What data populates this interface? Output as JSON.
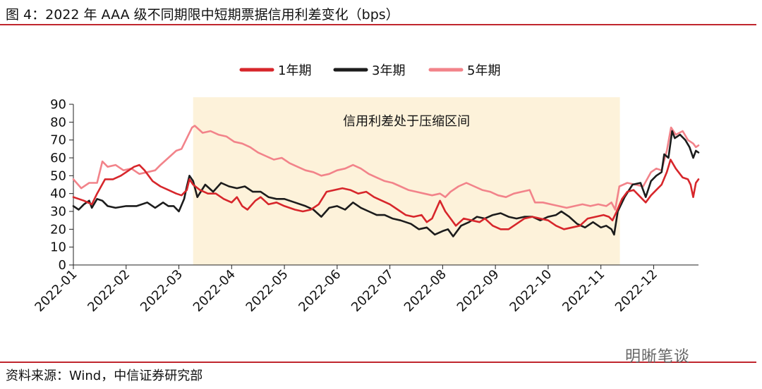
{
  "header": {
    "title": "图 4：2022 年 AAA 级不同期限中短期票据信用利差变化（bps）"
  },
  "footer": {
    "source": "资料来源：Wind，中信证券研究部",
    "watermark": "明晰笔谈"
  },
  "colors": {
    "rule": "#c0262d",
    "band": "#fdf2da"
  },
  "chart_data": {
    "type": "line",
    "ylim": [
      0,
      90
    ],
    "yticks": [
      0,
      10,
      20,
      30,
      40,
      50,
      60,
      70,
      80,
      90
    ],
    "xlim": [
      0,
      11.85
    ],
    "xticks": [
      {
        "pos": 0,
        "label": "2022-01"
      },
      {
        "pos": 1,
        "label": "2022-02"
      },
      {
        "pos": 2,
        "label": "2022-03"
      },
      {
        "pos": 3,
        "label": "2022-04"
      },
      {
        "pos": 4,
        "label": "2022-05"
      },
      {
        "pos": 5,
        "label": "2022-06"
      },
      {
        "pos": 6,
        "label": "2022-07"
      },
      {
        "pos": 7,
        "label": "2022-08"
      },
      {
        "pos": 8,
        "label": "2022-09"
      },
      {
        "pos": 9,
        "label": "2022-10"
      },
      {
        "pos": 10,
        "label": "2022-11"
      },
      {
        "pos": 11,
        "label": "2022-12"
      }
    ],
    "band": {
      "from": 2.27,
      "to": 10.36,
      "label": "信用利差处于压缩区间"
    },
    "legend_position": "top-center",
    "series": [
      {
        "name": "1年期",
        "color": "#d7262b",
        "points": [
          [
            0,
            38
          ],
          [
            0.2,
            36
          ],
          [
            0.35,
            34
          ],
          [
            0.45,
            40
          ],
          [
            0.6,
            48
          ],
          [
            0.75,
            48
          ],
          [
            0.9,
            50
          ],
          [
            1.0,
            52
          ],
          [
            1.15,
            55
          ],
          [
            1.25,
            56
          ],
          [
            1.35,
            53
          ],
          [
            1.5,
            47
          ],
          [
            1.65,
            44
          ],
          [
            1.8,
            42
          ],
          [
            1.95,
            40
          ],
          [
            2.05,
            39
          ],
          [
            2.15,
            42
          ],
          [
            2.2,
            48
          ],
          [
            2.27,
            45
          ],
          [
            2.4,
            42
          ],
          [
            2.55,
            40
          ],
          [
            2.7,
            40
          ],
          [
            2.85,
            37
          ],
          [
            3.0,
            35
          ],
          [
            3.1,
            38
          ],
          [
            3.2,
            33
          ],
          [
            3.3,
            31
          ],
          [
            3.45,
            36
          ],
          [
            3.55,
            38
          ],
          [
            3.7,
            34
          ],
          [
            3.85,
            35
          ],
          [
            4.0,
            33
          ],
          [
            4.2,
            31
          ],
          [
            4.35,
            30
          ],
          [
            4.5,
            31
          ],
          [
            4.65,
            34
          ],
          [
            4.8,
            41
          ],
          [
            4.95,
            42
          ],
          [
            5.1,
            43
          ],
          [
            5.25,
            42
          ],
          [
            5.4,
            40
          ],
          [
            5.55,
            41
          ],
          [
            5.7,
            38
          ],
          [
            5.85,
            36
          ],
          [
            6.0,
            34
          ],
          [
            6.15,
            31
          ],
          [
            6.3,
            28
          ],
          [
            6.45,
            27
          ],
          [
            6.6,
            28
          ],
          [
            6.7,
            24
          ],
          [
            6.8,
            26
          ],
          [
            6.95,
            36
          ],
          [
            7.05,
            30
          ],
          [
            7.15,
            26
          ],
          [
            7.25,
            22
          ],
          [
            7.4,
            26
          ],
          [
            7.55,
            25
          ],
          [
            7.7,
            24
          ],
          [
            7.8,
            26
          ],
          [
            7.95,
            22
          ],
          [
            8.1,
            20
          ],
          [
            8.25,
            20
          ],
          [
            8.4,
            23
          ],
          [
            8.55,
            26
          ],
          [
            8.7,
            27
          ],
          [
            8.85,
            26
          ],
          [
            9.0,
            25
          ],
          [
            9.15,
            22
          ],
          [
            9.3,
            20
          ],
          [
            9.45,
            21
          ],
          [
            9.6,
            22
          ],
          [
            9.75,
            26
          ],
          [
            9.9,
            27
          ],
          [
            10.05,
            28
          ],
          [
            10.15,
            27
          ],
          [
            10.22,
            25
          ],
          [
            10.3,
            30
          ],
          [
            10.4,
            37
          ],
          [
            10.5,
            41
          ],
          [
            10.62,
            42
          ],
          [
            10.75,
            38
          ],
          [
            10.85,
            35
          ],
          [
            10.95,
            39
          ],
          [
            11.05,
            42
          ],
          [
            11.15,
            45
          ],
          [
            11.25,
            52
          ],
          [
            11.32,
            59
          ],
          [
            11.42,
            54
          ],
          [
            11.55,
            49
          ],
          [
            11.65,
            48
          ],
          [
            11.7,
            45
          ],
          [
            11.75,
            38
          ],
          [
            11.8,
            46
          ],
          [
            11.85,
            48
          ]
        ]
      },
      {
        "name": "3年期",
        "color": "#1c1c1c",
        "points": [
          [
            0,
            33
          ],
          [
            0.1,
            31
          ],
          [
            0.2,
            34
          ],
          [
            0.3,
            36
          ],
          [
            0.35,
            32
          ],
          [
            0.45,
            37
          ],
          [
            0.55,
            36
          ],
          [
            0.65,
            33
          ],
          [
            0.8,
            32
          ],
          [
            1.0,
            33
          ],
          [
            1.2,
            33
          ],
          [
            1.4,
            35
          ],
          [
            1.55,
            32
          ],
          [
            1.7,
            35
          ],
          [
            1.8,
            33
          ],
          [
            1.9,
            33
          ],
          [
            2.0,
            30
          ],
          [
            2.1,
            37
          ],
          [
            2.15,
            44
          ],
          [
            2.2,
            50
          ],
          [
            2.27,
            47
          ],
          [
            2.35,
            38
          ],
          [
            2.5,
            45
          ],
          [
            2.65,
            41
          ],
          [
            2.8,
            46
          ],
          [
            2.95,
            44
          ],
          [
            3.1,
            43
          ],
          [
            3.25,
            44
          ],
          [
            3.4,
            41
          ],
          [
            3.55,
            41
          ],
          [
            3.7,
            38
          ],
          [
            3.85,
            37
          ],
          [
            4.0,
            37
          ],
          [
            4.2,
            35
          ],
          [
            4.4,
            33
          ],
          [
            4.55,
            31
          ],
          [
            4.7,
            27
          ],
          [
            4.85,
            32
          ],
          [
            5.0,
            33
          ],
          [
            5.15,
            31
          ],
          [
            5.3,
            35
          ],
          [
            5.45,
            32
          ],
          [
            5.6,
            30
          ],
          [
            5.75,
            28
          ],
          [
            5.9,
            28
          ],
          [
            6.05,
            26
          ],
          [
            6.2,
            25
          ],
          [
            6.4,
            23
          ],
          [
            6.55,
            20
          ],
          [
            6.7,
            21
          ],
          [
            6.85,
            17
          ],
          [
            7.0,
            19
          ],
          [
            7.1,
            20
          ],
          [
            7.2,
            16
          ],
          [
            7.35,
            22
          ],
          [
            7.5,
            24
          ],
          [
            7.65,
            27
          ],
          [
            7.8,
            26
          ],
          [
            7.95,
            28
          ],
          [
            8.1,
            29
          ],
          [
            8.25,
            27
          ],
          [
            8.4,
            26
          ],
          [
            8.55,
            27
          ],
          [
            8.7,
            27
          ],
          [
            8.85,
            25
          ],
          [
            9.0,
            27
          ],
          [
            9.15,
            28
          ],
          [
            9.25,
            30
          ],
          [
            9.4,
            27
          ],
          [
            9.55,
            23
          ],
          [
            9.7,
            21
          ],
          [
            9.85,
            24
          ],
          [
            10.0,
            21
          ],
          [
            10.1,
            22
          ],
          [
            10.2,
            20
          ],
          [
            10.25,
            17
          ],
          [
            10.32,
            30
          ],
          [
            10.45,
            38
          ],
          [
            10.6,
            45
          ],
          [
            10.75,
            46
          ],
          [
            10.85,
            38
          ],
          [
            10.95,
            47
          ],
          [
            11.05,
            50
          ],
          [
            11.15,
            52
          ],
          [
            11.2,
            62
          ],
          [
            11.28,
            60
          ],
          [
            11.35,
            75
          ],
          [
            11.4,
            71
          ],
          [
            11.5,
            73
          ],
          [
            11.6,
            70
          ],
          [
            11.68,
            66
          ],
          [
            11.75,
            60
          ],
          [
            11.8,
            64
          ],
          [
            11.85,
            63
          ]
        ]
      },
      {
        "name": "5年期",
        "color": "#f2838a",
        "points": [
          [
            0,
            48
          ],
          [
            0.15,
            43
          ],
          [
            0.3,
            46
          ],
          [
            0.45,
            46
          ],
          [
            0.55,
            58
          ],
          [
            0.65,
            55
          ],
          [
            0.8,
            56
          ],
          [
            0.95,
            53
          ],
          [
            1.1,
            54
          ],
          [
            1.25,
            51
          ],
          [
            1.4,
            52
          ],
          [
            1.55,
            53
          ],
          [
            1.65,
            56
          ],
          [
            1.8,
            60
          ],
          [
            1.95,
            64
          ],
          [
            2.05,
            65
          ],
          [
            2.15,
            71
          ],
          [
            2.25,
            77
          ],
          [
            2.3,
            78
          ],
          [
            2.45,
            74
          ],
          [
            2.6,
            75
          ],
          [
            2.75,
            73
          ],
          [
            2.9,
            72
          ],
          [
            3.05,
            69
          ],
          [
            3.2,
            68
          ],
          [
            3.35,
            66
          ],
          [
            3.5,
            63
          ],
          [
            3.65,
            61
          ],
          [
            3.8,
            59
          ],
          [
            3.95,
            60
          ],
          [
            4.1,
            57
          ],
          [
            4.25,
            55
          ],
          [
            4.4,
            53
          ],
          [
            4.55,
            52
          ],
          [
            4.7,
            50
          ],
          [
            4.85,
            51
          ],
          [
            5.0,
            53
          ],
          [
            5.15,
            54
          ],
          [
            5.3,
            56
          ],
          [
            5.45,
            54
          ],
          [
            5.6,
            51
          ],
          [
            5.75,
            49
          ],
          [
            5.9,
            47
          ],
          [
            6.05,
            46
          ],
          [
            6.2,
            44
          ],
          [
            6.35,
            42
          ],
          [
            6.5,
            41
          ],
          [
            6.65,
            40
          ],
          [
            6.8,
            39
          ],
          [
            6.95,
            40
          ],
          [
            7.05,
            38
          ],
          [
            7.15,
            41
          ],
          [
            7.3,
            44
          ],
          [
            7.45,
            46
          ],
          [
            7.6,
            44
          ],
          [
            7.75,
            42
          ],
          [
            7.9,
            41
          ],
          [
            8.05,
            39
          ],
          [
            8.2,
            38
          ],
          [
            8.35,
            40
          ],
          [
            8.5,
            41
          ],
          [
            8.65,
            42
          ],
          [
            8.75,
            35
          ],
          [
            8.9,
            35
          ],
          [
            9.05,
            34
          ],
          [
            9.2,
            33
          ],
          [
            9.35,
            32
          ],
          [
            9.5,
            33
          ],
          [
            9.65,
            34
          ],
          [
            9.8,
            33
          ],
          [
            9.95,
            34
          ],
          [
            10.1,
            33
          ],
          [
            10.2,
            35
          ],
          [
            10.27,
            31
          ],
          [
            10.35,
            44
          ],
          [
            10.5,
            46
          ],
          [
            10.65,
            45
          ],
          [
            10.8,
            44
          ],
          [
            10.95,
            52
          ],
          [
            11.05,
            54
          ],
          [
            11.15,
            53
          ],
          [
            11.25,
            64
          ],
          [
            11.33,
            77
          ],
          [
            11.42,
            73
          ],
          [
            11.55,
            75
          ],
          [
            11.65,
            70
          ],
          [
            11.75,
            68
          ],
          [
            11.8,
            66
          ],
          [
            11.85,
            67
          ]
        ]
      }
    ]
  }
}
